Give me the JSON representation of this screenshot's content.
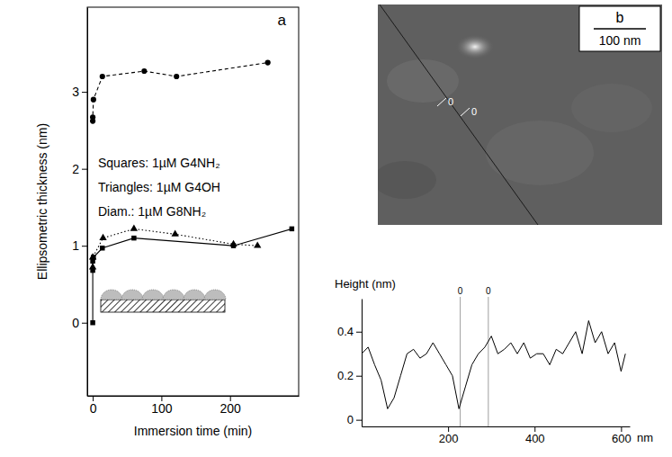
{
  "chart_data": [
    {
      "type": "line",
      "panel_label": "a",
      "ylabel": "Ellipsometric thickness (nm)",
      "xlabel": "Immersion time (min)",
      "annotations": [
        "Squares: 1µM G4NH₂",
        "Triangles: 1µM G4OH",
        "Diam.: 1µM G8NH₂"
      ],
      "xlim": [
        -8,
        300
      ],
      "xticks": [
        0,
        100,
        200
      ],
      "ylim": [
        -0.95,
        4.1
      ],
      "yticks": [
        0,
        1,
        2,
        3
      ],
      "series": [
        {
          "color": "#000000",
          "marker": "circle",
          "line_style": "dashed",
          "x": [
            0,
            0,
            1,
            14,
            75,
            122,
            255
          ],
          "values": [
            2.62,
            2.67,
            2.9,
            3.2,
            3.27,
            3.2,
            3.38
          ]
        },
        {
          "color": "#000000",
          "marker": "triangle",
          "line_style": "dotted",
          "x": [
            0,
            0,
            15,
            60,
            120,
            205,
            240
          ],
          "values": [
            0.72,
            0.85,
            1.1,
            1.22,
            1.15,
            1.02,
            1.0
          ]
        },
        {
          "color": "#000000",
          "marker": "square",
          "line_style": "solid",
          "x": [
            0,
            0,
            0,
            1,
            14,
            60,
            205,
            290
          ],
          "values": [
            0,
            0.68,
            0.8,
            0.85,
            0.97,
            1.1,
            1.0,
            1.22
          ]
        }
      ]
    },
    {
      "type": "line",
      "ylabel": "Height (nm)",
      "xlabel": "nm",
      "xlim": [
        0,
        620
      ],
      "xticks": [
        200,
        400,
        600
      ],
      "ylim": [
        -0.03,
        0.55
      ],
      "yticks": [
        0,
        0.2,
        0.4
      ],
      "markers": [
        {
          "value": 228,
          "label": "0"
        },
        {
          "value": 293,
          "label": "0"
        }
      ],
      "series": [
        {
          "color": "#000000",
          "line_style": "solid",
          "x": [
            0,
            15,
            30,
            45,
            60,
            75,
            90,
            105,
            120,
            135,
            150,
            165,
            180,
            195,
            210,
            225,
            240,
            255,
            270,
            285,
            300,
            315,
            330,
            345,
            360,
            375,
            390,
            405,
            420,
            435,
            450,
            465,
            480,
            495,
            510,
            525,
            540,
            555,
            570,
            585,
            600,
            610
          ],
          "values": [
            0.3,
            0.33,
            0.25,
            0.18,
            0.05,
            0.1,
            0.2,
            0.3,
            0.32,
            0.28,
            0.3,
            0.35,
            0.3,
            0.25,
            0.2,
            0.05,
            0.15,
            0.25,
            0.3,
            0.33,
            0.38,
            0.3,
            0.32,
            0.35,
            0.3,
            0.35,
            0.28,
            0.3,
            0.3,
            0.25,
            0.32,
            0.3,
            0.35,
            0.4,
            0.3,
            0.45,
            0.35,
            0.4,
            0.3,
            0.35,
            0.22,
            0.3
          ]
        }
      ]
    }
  ],
  "image_panel": {
    "label": "b",
    "scale_bar_label": "100 nm",
    "marker_labels": [
      "0",
      "0"
    ]
  }
}
